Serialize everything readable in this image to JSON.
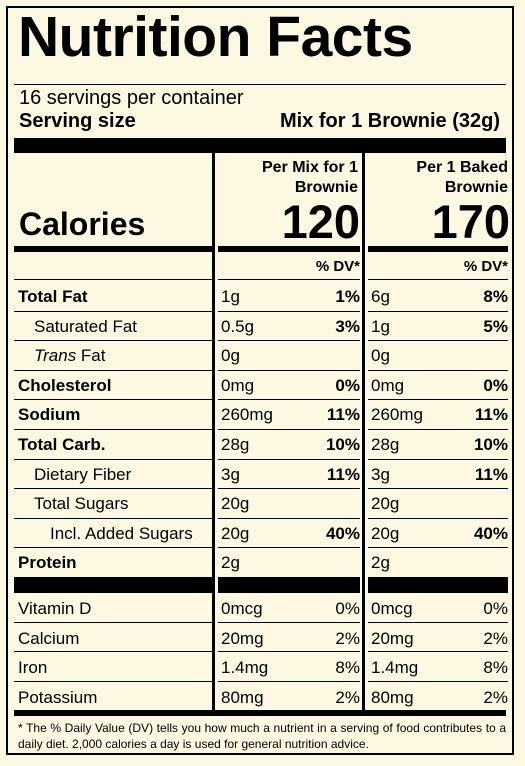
{
  "title": "Nutrition Facts",
  "servings": "16 servings per container",
  "serving_size_label": "Serving size",
  "serving_size_value": "Mix for 1 Brownie (32g)",
  "col1_header_line1": "Per Mix for 1",
  "col1_header_line2": "Brownie",
  "col2_header_line1": "Per 1 Baked",
  "col2_header_line2": "Brownie",
  "calories_label": "Calories",
  "calories_col1": "120",
  "calories_col2": "170",
  "dv_header": "% DV*",
  "nutrients": [
    {
      "name": "Total Fat",
      "c1": "1g",
      "d1": "1%",
      "c2": "6g",
      "d2": "8%"
    },
    {
      "name": "Saturated Fat",
      "c1": "0.5g",
      "d1": "3%",
      "c2": "1g",
      "d2": "5%"
    },
    {
      "name_italic": "Trans",
      "name_rest": " Fat",
      "c1": "0g",
      "d1": "",
      "c2": "0g",
      "d2": ""
    },
    {
      "name": "Cholesterol",
      "c1": "0mg",
      "d1": "0%",
      "c2": "0mg",
      "d2": "0%"
    },
    {
      "name": "Sodium",
      "c1": "260mg",
      "d1": "11%",
      "c2": "260mg",
      "d2": "11%"
    },
    {
      "name": "Total Carb.",
      "c1": "28g",
      "d1": "10%",
      "c2": "28g",
      "d2": "10%"
    },
    {
      "name": "Dietary Fiber",
      "c1": "3g",
      "d1": "11%",
      "c2": "3g",
      "d2": "11%"
    },
    {
      "name": "Total Sugars",
      "c1": "20g",
      "d1": "",
      "c2": "20g",
      "d2": ""
    },
    {
      "name": "Incl. Added Sugars",
      "c1": "20g",
      "d1": "40%",
      "c2": "20g",
      "d2": "40%"
    },
    {
      "name": "Protein",
      "c1": "2g",
      "d1": "",
      "c2": "2g",
      "d2": ""
    }
  ],
  "vitamins": [
    {
      "name": "Vitamin D",
      "c1": "0mcg",
      "d1": "0%",
      "c2": "0mcg",
      "d2": "0%"
    },
    {
      "name": "Calcium",
      "c1": "20mg",
      "d1": "2%",
      "c2": "20mg",
      "d2": "2%"
    },
    {
      "name": "Iron",
      "c1": "1.4mg",
      "d1": "8%",
      "c2": "1.4mg",
      "d2": "8%"
    },
    {
      "name": "Potassium",
      "c1": "80mg",
      "d1": "2%",
      "c2": "80mg",
      "d2": "2%"
    }
  ],
  "footnote": "* The % Daily Value (DV) tells you how much a nutrient in a serving of food contributes to a daily diet. 2,000 calories a day is used for general nutrition advice."
}
